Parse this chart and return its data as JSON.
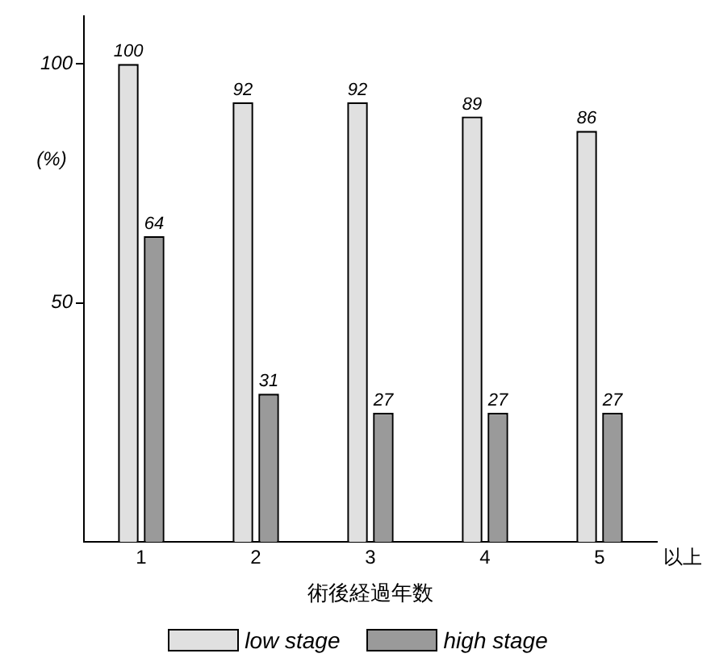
{
  "chart_data": {
    "type": "bar",
    "ylabel": "(%)",
    "xlabel": "術後経過年数",
    "categories": [
      "1",
      "2",
      "3",
      "4",
      "5"
    ],
    "series": [
      {
        "name": "low stage",
        "color": "#e0e0e0",
        "values": [
          100,
          92,
          92,
          89,
          86
        ]
      },
      {
        "name": "high stage",
        "color": "#9a9a9a",
        "values": [
          64,
          31,
          27,
          27,
          27
        ]
      }
    ],
    "ylim": [
      0,
      110
    ],
    "yticks": [
      50,
      100
    ],
    "grid": false,
    "legend": "bottom",
    "data_labels": true,
    "annotations": [
      "以上"
    ]
  }
}
